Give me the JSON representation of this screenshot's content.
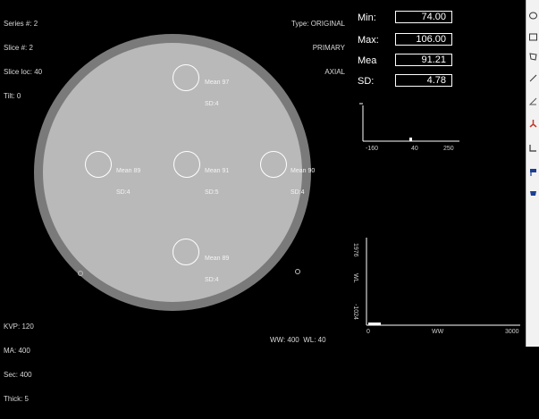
{
  "header_left": [
    "Series #: 2",
    "Slice #: 2",
    "Slice loc: 40",
    "Tilt: 0"
  ],
  "header_right": [
    "Type: ORIGINAL",
    "PRIMARY",
    "AXIAL"
  ],
  "footer_left": [
    "KVP: 120",
    "MA: 400",
    "Sec: 400",
    "Thick: 5"
  ],
  "footer_window": "WW: 400  WL: 40",
  "rois": [
    {
      "mean": "Mean 97",
      "sd": "SD:4"
    },
    {
      "mean": "Mean 89",
      "sd": "SD:4"
    },
    {
      "mean": "Mean 91",
      "sd": "SD:5"
    },
    {
      "mean": "Mean 90",
      "sd": "SD:4"
    },
    {
      "mean": "Mean 89",
      "sd": "SD:4"
    }
  ],
  "stats": {
    "min_label": "Min:",
    "min_value": "74.00",
    "max_label": "Max:",
    "max_value": "106.00",
    "mean_label": "Mea",
    "mean_value": "91.21",
    "sd_label": "SD:",
    "sd_value": "4.78"
  },
  "histogram": {
    "x_ticks": [
      "-160",
      "40",
      "250"
    ]
  },
  "window_graph": {
    "y_top": "1976",
    "y_label": "WL",
    "y_bottom": "-1024",
    "x_left": "0",
    "x_label": "WW",
    "x_right": "3000"
  },
  "toolbar_icons": [
    "ellipse-roi-icon",
    "rectangle-roi-icon",
    "polygon-roi-icon",
    "line-icon",
    "angle-icon",
    "marker-icon",
    "corner-icon",
    "flag-icon",
    "bucket-icon"
  ]
}
